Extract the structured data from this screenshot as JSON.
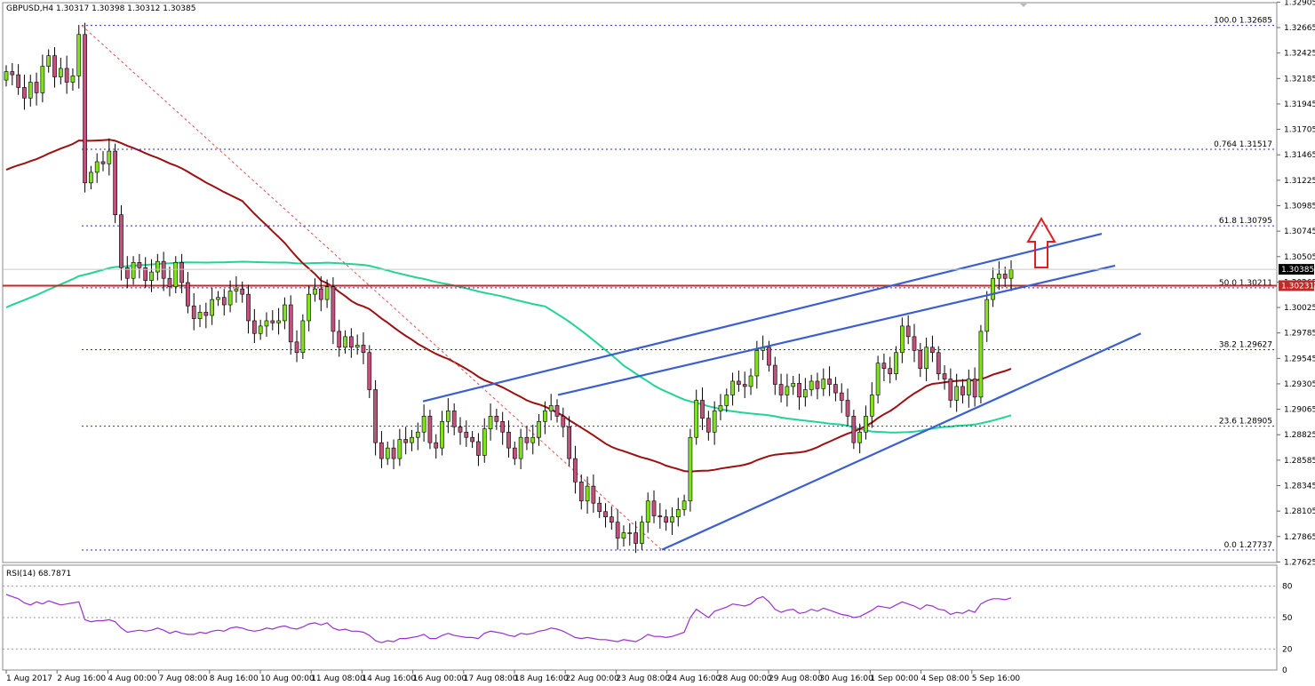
{
  "header": {
    "symbol_line": "GBPUSD,H4  1.30317 1.30398 1.30312 1.30385"
  },
  "rsi_panel": {
    "label": "RSI(14) 68.7871"
  },
  "colors": {
    "bull": "#7fe21a",
    "bear": "#c2527c",
    "ma_short": "#9b1111",
    "ma_long": "#22d494",
    "trendline": "#3b5fcf",
    "fib": "#2c2ec0",
    "resistance": "#c62828",
    "arrow": "#e02020",
    "rsi": "#9b2fd0"
  },
  "chart_data": [
    {
      "type": "candlestick",
      "symbol": "GBPUSD",
      "timeframe": "H4",
      "ylim": [
        1.2762,
        1.329
      ],
      "y_ticks": [
        "1.32905",
        "1.32665",
        "1.32425",
        "1.32185",
        "1.31945",
        "1.31705",
        "1.31465",
        "1.31225",
        "1.30985",
        "1.30745",
        "1.30505",
        "1.30265",
        "1.30025",
        "1.29785",
        "1.29545",
        "1.29305",
        "1.29065",
        "1.28825",
        "1.28585",
        "1.28345",
        "1.28105",
        "1.27865",
        "1.27625"
      ],
      "x_ticks": [
        "1 Aug 2017",
        "2 Aug 16:00",
        "4 Aug 00:00",
        "7 Aug 08:00",
        "8 Aug 16:00",
        "10 Aug 00:00",
        "11 Aug 08:00",
        "14 Aug 16:00",
        "16 Aug 00:00",
        "17 Aug 08:00",
        "18 Aug 16:00",
        "22 Aug 00:00",
        "23 Aug 08:00",
        "24 Aug 16:00",
        "28 Aug 00:00",
        "29 Aug 08:00",
        "30 Aug 16:00",
        "1 Sep 00:00",
        "4 Sep 08:00",
        "5 Sep 16:00"
      ],
      "closes": [
        1.3225,
        1.3222,
        1.321,
        1.32,
        1.3215,
        1.3205,
        1.323,
        1.324,
        1.322,
        1.3228,
        1.3215,
        1.3221,
        1.326,
        1.312,
        1.313,
        1.314,
        1.3138,
        1.315,
        1.309,
        1.304,
        1.303,
        1.3045,
        1.304,
        1.3028,
        1.3036,
        1.3046,
        1.303,
        1.3022,
        1.3045,
        1.3026,
        1.3004,
        1.2992,
        1.2998,
        1.2995,
        1.301,
        1.3012,
        1.3005,
        1.3018,
        1.302,
        1.3015,
        1.299,
        1.2978,
        1.2985,
        1.299,
        1.2988,
        1.299,
        1.3005,
        1.297,
        1.296,
        1.299,
        1.3015,
        1.302,
        1.301,
        1.3022,
        1.298,
        1.2965,
        1.2975,
        1.2965,
        1.2967,
        1.296,
        1.2925,
        1.2875,
        1.286,
        1.287,
        1.286,
        1.2878,
        1.2875,
        1.288,
        1.2885,
        1.29,
        1.2875,
        1.287,
        1.2895,
        1.2905,
        1.289,
        1.2885,
        1.288,
        1.2876,
        1.2863,
        1.2888,
        1.29,
        1.2895,
        1.2885,
        1.287,
        1.286,
        1.288,
        1.2875,
        1.288,
        1.2895,
        1.2905,
        1.291,
        1.29,
        1.289,
        1.286,
        1.2838,
        1.282,
        1.2834,
        1.2818,
        1.281,
        1.2805,
        1.28,
        1.2785,
        1.279,
        1.279,
        1.278,
        1.28,
        1.282,
        1.2806,
        1.2805,
        1.28,
        1.2805,
        1.2812,
        1.282,
        1.288,
        1.2915,
        1.2898,
        1.2885,
        1.2905,
        1.291,
        1.292,
        1.2933,
        1.293,
        1.2928,
        1.2938,
        1.2962,
        1.2965,
        1.2948,
        1.293,
        1.292,
        1.2928,
        1.2931,
        1.2918,
        1.2925,
        1.2933,
        1.2926,
        1.2935,
        1.293,
        1.2922,
        1.2915,
        1.29,
        1.2875,
        1.2885,
        1.29,
        1.292,
        1.295,
        1.2945,
        1.294,
        1.296,
        1.2985,
        1.2975,
        1.2962,
        1.2945,
        1.2965,
        1.296,
        1.294,
        1.2935,
        1.2915,
        1.2928,
        1.292,
        1.2935,
        1.2918,
        1.298,
        1.301,
        1.303,
        1.3034,
        1.303,
        1.3038
      ],
      "annotations": {
        "fib_levels": [
          {
            "label": "100.0  1.32685",
            "value": 1.32685
          },
          {
            "label": "0.764  1.31517",
            "value": 1.31517
          },
          {
            "label": "61.8  1.30795",
            "value": 1.30795
          },
          {
            "label": "50.0  1.30211",
            "value": 1.30211
          },
          {
            "label": "38.2  1.29627",
            "value": 1.29627
          },
          {
            "label": "23.6  1.28905",
            "value": 1.28905
          },
          {
            "label": "0.0  1.27737",
            "value": 1.27737
          }
        ],
        "current_price": "1.30385",
        "resistance_price": "1.30231"
      }
    },
    {
      "type": "line",
      "title": "RSI(14) 68.7871",
      "ylim": [
        0,
        100
      ],
      "y_ticks": [
        "80",
        "50",
        "20",
        "0"
      ],
      "levels": [
        80,
        50,
        20
      ],
      "values": [
        72,
        70,
        68,
        64,
        62,
        65,
        63,
        66,
        64,
        62,
        63,
        64,
        65,
        48,
        46,
        47,
        47,
        48,
        46,
        40,
        36,
        37,
        38,
        37,
        38,
        40,
        38,
        35,
        37,
        35,
        34,
        34,
        36,
        35,
        37,
        38,
        37,
        40,
        41,
        40,
        38,
        37,
        38,
        40,
        39,
        41,
        42,
        40,
        39,
        41,
        44,
        45,
        43,
        45,
        40,
        38,
        39,
        37,
        37,
        36,
        33,
        28,
        26,
        28,
        27,
        30,
        30,
        31,
        32,
        34,
        30,
        30,
        33,
        35,
        33,
        32,
        31,
        31,
        30,
        35,
        37,
        36,
        35,
        33,
        32,
        35,
        34,
        35,
        37,
        38,
        40,
        39,
        37,
        34,
        31,
        30,
        31,
        30,
        29,
        29,
        28,
        27,
        29,
        28,
        27,
        30,
        34,
        32,
        32,
        31,
        32,
        34,
        36,
        50,
        58,
        54,
        50,
        56,
        58,
        60,
        63,
        62,
        61,
        63,
        68,
        70,
        65,
        58,
        55,
        57,
        58,
        54,
        55,
        58,
        56,
        59,
        57,
        55,
        53,
        52,
        50,
        51,
        54,
        57,
        61,
        60,
        59,
        62,
        65,
        63,
        61,
        58,
        62,
        61,
        58,
        57,
        53,
        55,
        54,
        57,
        55,
        63,
        66,
        68,
        68,
        67,
        68.8
      ]
    }
  ]
}
